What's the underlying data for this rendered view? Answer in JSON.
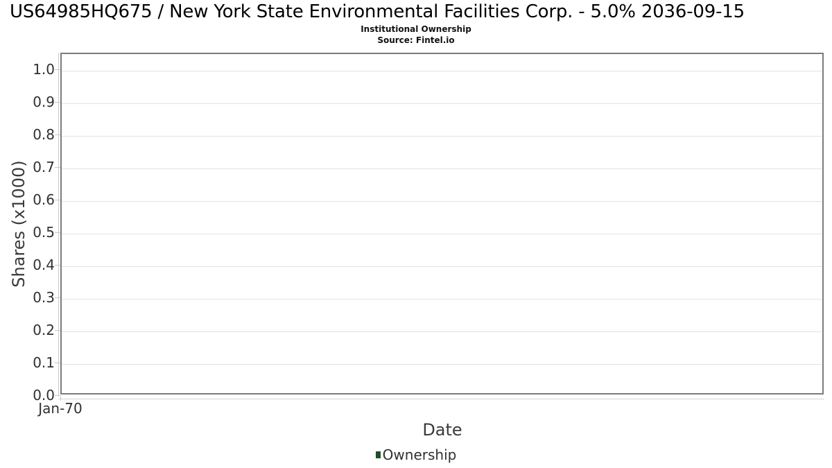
{
  "header": {
    "title": "US64985HQ675 / New York State Environmental Facilities Corp. - 5.0% 2036-09-15",
    "subtitle": "Institutional Ownership",
    "source": "Source: Fintel.io"
  },
  "axes": {
    "y_label": "Shares (x1000)",
    "x_label": "Date",
    "y_tick_labels": [
      "0.0",
      "0.1",
      "0.2",
      "0.3",
      "0.4",
      "0.5",
      "0.6",
      "0.7",
      "0.8",
      "0.9",
      "1.0"
    ],
    "x_tick_labels": [
      "Jan-70"
    ]
  },
  "legend": {
    "items": [
      {
        "label": "Ownership",
        "color": "#1f4e2b"
      }
    ]
  },
  "colors": {
    "grid": "#e2e2e2",
    "plot_border": "#7c7c7c",
    "tick_line": "#c9c9c9",
    "text": "#303030",
    "title_text": "#000000",
    "legend_green": "#1f4e2b"
  },
  "chart_data": {
    "type": "bar",
    "title": "US64985HQ675 / New York State Environmental Facilities Corp. - 5.0% 2036-09-15",
    "subtitle": "Institutional Ownership",
    "source": "Source: Fintel.io",
    "xlabel": "Date",
    "ylabel": "Shares (x1000)",
    "x": [
      "Jan-70"
    ],
    "series": [
      {
        "name": "Ownership",
        "color": "#1f4e2b",
        "values": []
      }
    ],
    "ylim": [
      0.0,
      1.05
    ],
    "yticks": [
      0.0,
      0.1,
      0.2,
      0.3,
      0.4,
      0.5,
      0.6,
      0.7,
      0.8,
      0.9,
      1.0
    ],
    "grid": true,
    "legend_position": "bottom"
  }
}
